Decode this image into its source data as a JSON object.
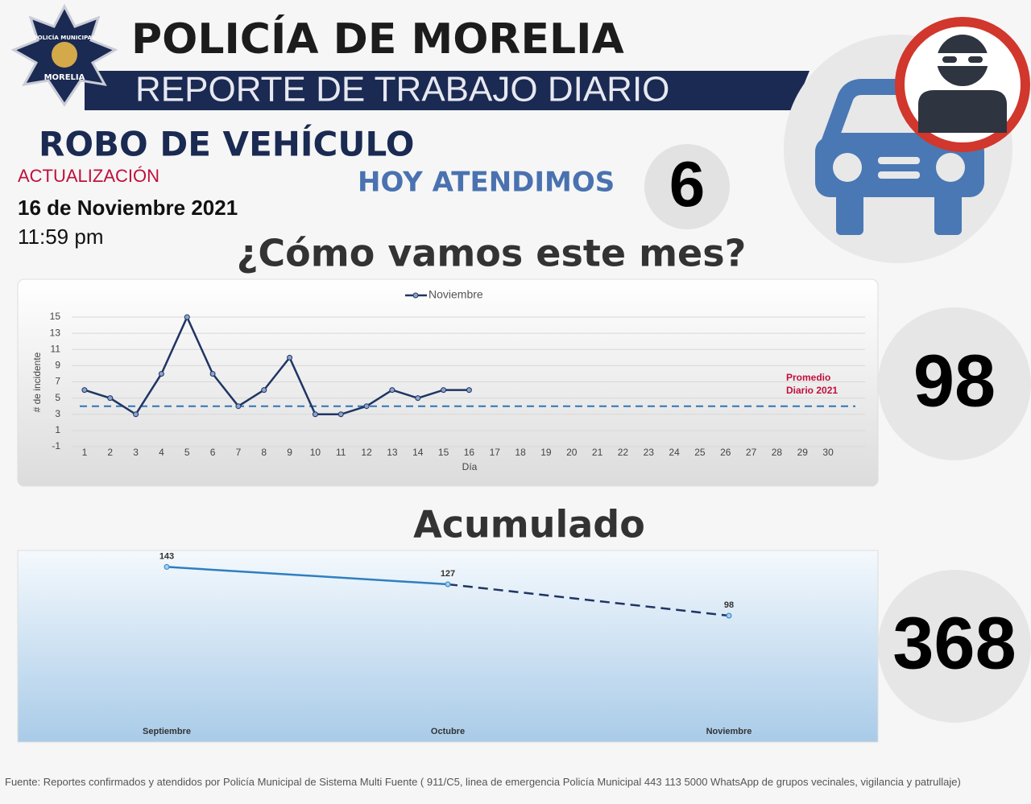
{
  "header": {
    "title": "POLICÍA DE MORELIA",
    "subtitle": "REPORTE DE TRABAJO DIARIO",
    "badge_top": "POLICÍA MUNICIPAL",
    "badge_bottom": "MORELIA"
  },
  "crime": "ROBO DE VEHÍCULO",
  "update_label": "ACTUALIZACIÓN",
  "date": "16 de Noviembre 2021",
  "time": "11:59 pm",
  "today_label": "HOY ATENDIMOS",
  "today_value": 6,
  "month_title": "¿Cómo vamos este mes?",
  "month_total": 98,
  "cumulative_title": "Acumulado",
  "cumulative_total": 368,
  "footer": "Fuente: Reportes confirmados y atendidos por Policía Municipal de Sistema Multi Fuente ( 911/C5, linea de emergencia Policía Municipal 443 113 5000 WhatsApp de grupos vecinales, vigilancia y patrullaje)",
  "chart_data": [
    {
      "type": "line",
      "xlabel": "Día",
      "ylabel": "# de incidente",
      "x": [
        1,
        2,
        3,
        4,
        5,
        6,
        7,
        8,
        9,
        10,
        11,
        12,
        13,
        14,
        15,
        16
      ],
      "series": [
        {
          "name": "Noviembre",
          "color": "#1f3564",
          "values": [
            6,
            5,
            3,
            8,
            15,
            8,
            4,
            6,
            10,
            3,
            3,
            4,
            6,
            5,
            6,
            6
          ]
        }
      ],
      "xlim": [
        0.5,
        30.5
      ],
      "xticks": [
        1,
        2,
        3,
        4,
        5,
        6,
        7,
        8,
        9,
        10,
        11,
        12,
        13,
        14,
        15,
        16,
        17,
        18,
        19,
        20,
        21,
        22,
        23,
        24,
        25,
        26,
        27,
        28,
        29,
        30
      ],
      "ylim": [
        -1,
        16
      ],
      "yticks": [
        -1,
        1,
        3,
        5,
        7,
        9,
        11,
        13,
        15
      ],
      "grid": true,
      "legend": "top",
      "reference": {
        "value": 4,
        "color": "#2e75b6",
        "label": [
          "Promedio",
          "Diario 2021"
        ],
        "label_color": "#c0103a"
      }
    },
    {
      "type": "line",
      "categories": [
        "Septiembre",
        "Octubre",
        "Noviembre"
      ],
      "series": [
        {
          "color": "#2e7fc1",
          "values": [
            143,
            127,
            98
          ]
        }
      ],
      "segment_styles": [
        "solid",
        "dashed"
      ],
      "ylim": [
        0,
        150
      ]
    }
  ]
}
